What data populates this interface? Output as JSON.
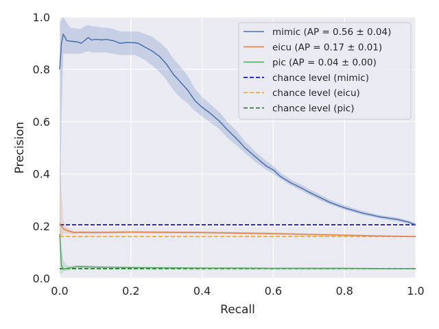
{
  "chart_data": {
    "type": "line",
    "xlabel": "Recall",
    "ylabel": "Precision",
    "xlim": [
      0,
      1
    ],
    "ylim": [
      0,
      1
    ],
    "xticks": [
      "0.0",
      "0.2",
      "0.4",
      "0.6",
      "0.8",
      "1.0"
    ],
    "yticks": [
      "0.0",
      "0.2",
      "0.4",
      "0.6",
      "0.8",
      "1.0"
    ],
    "grid": true,
    "legend_position": "top-right",
    "series": [
      {
        "name": "mimic (AP = 0.56 ± 0.04)",
        "color": "#4c72b0",
        "band_color": "#4c72b0",
        "x": [
          0,
          0.005,
          0.01,
          0.02,
          0.03,
          0.05,
          0.06,
          0.07,
          0.08,
          0.09,
          0.1,
          0.12,
          0.13,
          0.15,
          0.17,
          0.19,
          0.21,
          0.22,
          0.24,
          0.26,
          0.28,
          0.3,
          0.32,
          0.34,
          0.36,
          0.38,
          0.4,
          0.42,
          0.45,
          0.47,
          0.5,
          0.52,
          0.55,
          0.58,
          0.6,
          0.62,
          0.65,
          0.68,
          0.7,
          0.73,
          0.76,
          0.8,
          0.85,
          0.9,
          0.95,
          0.98,
          1.0
        ],
        "y": [
          0.8,
          0.9,
          0.935,
          0.91,
          0.908,
          0.905,
          0.9,
          0.91,
          0.922,
          0.912,
          0.915,
          0.913,
          0.915,
          0.91,
          0.9,
          0.903,
          0.902,
          0.9,
          0.885,
          0.87,
          0.85,
          0.82,
          0.78,
          0.75,
          0.72,
          0.68,
          0.655,
          0.635,
          0.6,
          0.57,
          0.53,
          0.5,
          0.465,
          0.43,
          0.415,
          0.39,
          0.365,
          0.345,
          0.33,
          0.31,
          0.29,
          0.27,
          0.25,
          0.235,
          0.225,
          0.215,
          0.205
        ],
        "lower": [
          0.1,
          0.6,
          0.86,
          0.86,
          0.86,
          0.86,
          0.86,
          0.865,
          0.87,
          0.865,
          0.865,
          0.865,
          0.865,
          0.86,
          0.855,
          0.855,
          0.855,
          0.85,
          0.835,
          0.815,
          0.79,
          0.76,
          0.72,
          0.69,
          0.67,
          0.64,
          0.62,
          0.6,
          0.57,
          0.54,
          0.505,
          0.48,
          0.445,
          0.415,
          0.4,
          0.38,
          0.355,
          0.335,
          0.32,
          0.3,
          0.282,
          0.262,
          0.243,
          0.228,
          0.218,
          0.208,
          0.2
        ],
        "upper": [
          0.98,
          0.99,
          1.0,
          0.98,
          0.96,
          0.955,
          0.955,
          0.965,
          0.97,
          0.965,
          0.965,
          0.96,
          0.96,
          0.955,
          0.945,
          0.945,
          0.945,
          0.945,
          0.935,
          0.925,
          0.905,
          0.88,
          0.84,
          0.81,
          0.775,
          0.725,
          0.695,
          0.67,
          0.635,
          0.6,
          0.56,
          0.525,
          0.485,
          0.45,
          0.43,
          0.405,
          0.378,
          0.358,
          0.342,
          0.322,
          0.3,
          0.28,
          0.258,
          0.242,
          0.232,
          0.222,
          0.21
        ]
      },
      {
        "name": "eicu (AP = 0.17 ± 0.01)",
        "color": "#dd8452",
        "band_color": "#dd8452",
        "x": [
          0,
          0.01,
          0.02,
          0.04,
          0.06,
          0.1,
          0.2,
          0.3,
          0.4,
          0.5,
          0.6,
          0.7,
          0.8,
          0.9,
          1.0
        ],
        "y": [
          0.21,
          0.19,
          0.183,
          0.175,
          0.176,
          0.175,
          0.177,
          0.176,
          0.175,
          0.173,
          0.171,
          0.168,
          0.165,
          0.162,
          0.16
        ],
        "lower": [
          0.15,
          0.17,
          0.172,
          0.169,
          0.17,
          0.17,
          0.172,
          0.171,
          0.17,
          0.168,
          0.166,
          0.164,
          0.161,
          0.159,
          0.158
        ],
        "upper": [
          0.44,
          0.22,
          0.195,
          0.181,
          0.182,
          0.181,
          0.182,
          0.181,
          0.18,
          0.178,
          0.176,
          0.172,
          0.169,
          0.165,
          0.162
        ]
      },
      {
        "name": "pic (AP = 0.04 ± 0.00)",
        "color": "#55a868",
        "band_color": "#55a868",
        "x": [
          0,
          0.005,
          0.01,
          0.02,
          0.03,
          0.05,
          0.1,
          0.15,
          0.2,
          0.3,
          0.4,
          0.5,
          0.6,
          0.7,
          0.8,
          0.9,
          1.0
        ],
        "y": [
          0.17,
          0.05,
          0.035,
          0.038,
          0.04,
          0.045,
          0.043,
          0.042,
          0.041,
          0.04,
          0.039,
          0.039,
          0.038,
          0.038,
          0.038,
          0.037,
          0.037
        ],
        "lower": [
          0.02,
          0.015,
          0.025,
          0.03,
          0.033,
          0.038,
          0.038,
          0.037,
          0.037,
          0.036,
          0.036,
          0.036,
          0.035,
          0.035,
          0.035,
          0.035,
          0.035
        ],
        "upper": [
          0.27,
          0.12,
          0.07,
          0.05,
          0.048,
          0.05,
          0.048,
          0.046,
          0.045,
          0.043,
          0.042,
          0.042,
          0.041,
          0.041,
          0.041,
          0.04,
          0.039
        ]
      }
    ],
    "reference_lines": [
      {
        "name": "chance level (mimic)",
        "y": 0.205,
        "color": "#0000cc",
        "style": "dashed"
      },
      {
        "name": "chance level (eicu)",
        "y": 0.16,
        "color": "#ffa500",
        "style": "dashed"
      },
      {
        "name": "chance level (pic)",
        "y": 0.037,
        "color": "#007f00",
        "style": "dashed"
      }
    ]
  }
}
